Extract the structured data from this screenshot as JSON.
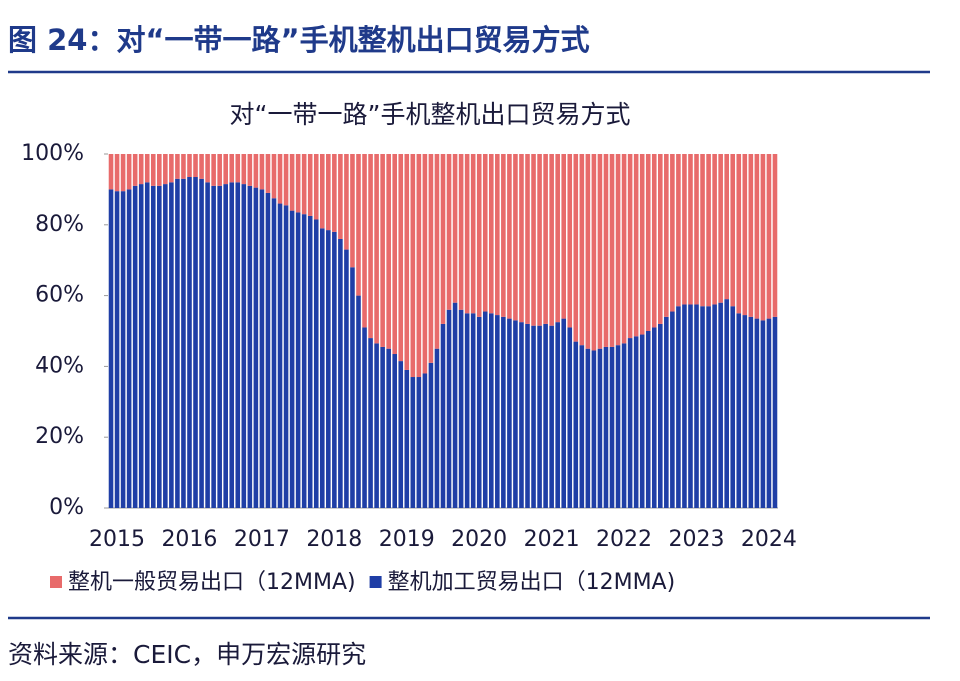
{
  "header": {
    "title": "图 24：对“一带一路”手机整机出口贸易方式"
  },
  "chart_data": {
    "type": "stacked_bar",
    "title": "对“一带一路”手机整机出口贸易方式",
    "categories": [
      "2015",
      null,
      null,
      null,
      null,
      null,
      null,
      null,
      null,
      null,
      null,
      null,
      "2016",
      null,
      null,
      null,
      null,
      null,
      null,
      null,
      null,
      null,
      null,
      null,
      "2017",
      null,
      null,
      null,
      null,
      null,
      null,
      null,
      null,
      null,
      null,
      null,
      "2018",
      null,
      null,
      null,
      null,
      null,
      null,
      null,
      null,
      null,
      null,
      null,
      "2019",
      null,
      null,
      null,
      null,
      null,
      null,
      null,
      null,
      null,
      null,
      null,
      "2020",
      null,
      null,
      null,
      null,
      null,
      null,
      null,
      null,
      null,
      null,
      null,
      "2021",
      null,
      null,
      null,
      null,
      null,
      null,
      null,
      null,
      null,
      null,
      null,
      "2022",
      null,
      null,
      null,
      null,
      null,
      null,
      null,
      null,
      null,
      null,
      null,
      "2023",
      null,
      null,
      null,
      null,
      null,
      null,
      null,
      null,
      null,
      null,
      null,
      "2024",
      null,
      null
    ],
    "series": [
      {
        "name": "整机一般贸易出口（12MMA)",
        "color": "#e86b6b",
        "values": [
          10,
          10.5,
          10.5,
          10,
          9,
          8.5,
          8,
          9,
          9,
          8.5,
          8,
          7,
          7,
          6.5,
          6.5,
          7,
          8,
          9,
          9,
          8.5,
          8,
          8,
          8.5,
          9,
          9.5,
          10,
          11,
          12.5,
          14,
          14.5,
          16,
          16.5,
          17,
          17.5,
          18.5,
          21,
          21.5,
          22,
          24,
          27,
          32,
          40,
          49,
          52,
          53.5,
          54.5,
          55,
          56.5,
          58.5,
          61,
          63,
          63,
          62,
          59,
          55,
          48,
          44,
          42,
          44,
          45,
          45,
          46,
          44.5,
          45,
          45.5,
          46,
          46.5,
          47,
          47.5,
          48,
          48.5,
          48.5,
          48,
          48.5,
          47.5,
          46.5,
          49,
          53,
          54,
          55,
          55.5,
          55,
          54.5,
          54.5,
          54,
          53.5,
          52,
          51.5,
          51,
          50,
          49,
          48,
          46,
          44.5,
          43,
          42.5,
          42.5,
          42.5,
          43,
          43,
          42.5,
          42,
          41,
          43,
          45,
          45.5,
          46,
          46.5,
          47,
          46.5,
          46
        ]
      },
      {
        "name": "整机加工贸易出口（12MMA)",
        "color": "#1f3ea6",
        "values": [
          90,
          89.5,
          89.5,
          90,
          91,
          91.5,
          92,
          91,
          91,
          91.5,
          92,
          93,
          93,
          93.5,
          93.5,
          93,
          92,
          91,
          91,
          91.5,
          92,
          92,
          91.5,
          91,
          90.5,
          90,
          89,
          87.5,
          86,
          85.5,
          84,
          83.5,
          83,
          82.5,
          81.5,
          79,
          78.5,
          78,
          76,
          73,
          68,
          60,
          51,
          48,
          46.5,
          45.5,
          45,
          43.5,
          41.5,
          39,
          37,
          37,
          38,
          41,
          45,
          52,
          56,
          58,
          56,
          55,
          55,
          54,
          55.5,
          55,
          54.5,
          54,
          53.5,
          53,
          52.5,
          52,
          51.5,
          51.5,
          52,
          51.5,
          52.5,
          53.5,
          51,
          47,
          46,
          45,
          44.5,
          45,
          45.5,
          45.5,
          46,
          46.5,
          48,
          48.5,
          49,
          50,
          51,
          52,
          54,
          55.5,
          57,
          57.5,
          57.5,
          57.5,
          57,
          57,
          57.5,
          58,
          59,
          57,
          55,
          54.5,
          54,
          53.5,
          53,
          53.5,
          54
        ]
      }
    ],
    "ylim": [
      0,
      100
    ],
    "yticks": [
      {
        "value": 0,
        "label": "0%"
      },
      {
        "value": 20,
        "label": "20%"
      },
      {
        "value": 40,
        "label": "40%"
      },
      {
        "value": 60,
        "label": "60%"
      },
      {
        "value": 80,
        "label": "80%"
      },
      {
        "value": 100,
        "label": "100%"
      }
    ]
  },
  "source": "资料来源：CEIC，申万宏源研究"
}
